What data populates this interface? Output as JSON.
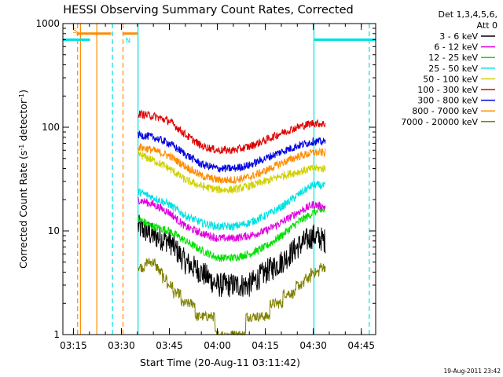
{
  "chart_data": {
    "type": "line",
    "title": "HESSI Observing Summary Count Rates, Corrected",
    "xlabel": "Start Time (20-Aug-11 03:11:42)",
    "ylabel": "Corrected Count Rate (s⁻¹ detector⁻¹)",
    "x_range_minutes": [
      191.7,
      289.5
    ],
    "ylim": [
      1,
      1000
    ],
    "yscale": "log",
    "x_ticks": [
      {
        "t": 195,
        "label": "03:15"
      },
      {
        "t": 210,
        "label": "03:30"
      },
      {
        "t": 225,
        "label": "03:45"
      },
      {
        "t": 240,
        "label": "04:00"
      },
      {
        "t": 255,
        "label": "04:15"
      },
      {
        "t": 270,
        "label": "04:30"
      },
      {
        "t": 285,
        "label": "04:45"
      }
    ],
    "y_ticks": [
      {
        "v": 1,
        "label": "1"
      },
      {
        "v": 10,
        "label": "10"
      },
      {
        "v": 100,
        "label": "100"
      },
      {
        "v": 1000,
        "label": "1000"
      }
    ],
    "legend_header": [
      "Det 1,3,4,5,6,",
      "Att 0"
    ],
    "data_start": 215.2,
    "data_end": 273.8,
    "series": [
      {
        "name": "3 - 6 keV",
        "color": "#000000",
        "points": [
          [
            215.2,
            11
          ],
          [
            220,
            9
          ],
          [
            225,
            8
          ],
          [
            230,
            5
          ],
          [
            235,
            4
          ],
          [
            240,
            3
          ],
          [
            245,
            3
          ],
          [
            250,
            3
          ],
          [
            255,
            4
          ],
          [
            260,
            5
          ],
          [
            265,
            7
          ],
          [
            270,
            9
          ],
          [
            273.8,
            8
          ]
        ]
      },
      {
        "name": "6 - 12 keV",
        "color": "#e000e0",
        "points": [
          [
            215.2,
            20
          ],
          [
            220,
            18
          ],
          [
            225,
            15
          ],
          [
            230,
            11
          ],
          [
            235,
            9.5
          ],
          [
            240,
            8.5
          ],
          [
            245,
            8.5
          ],
          [
            250,
            9
          ],
          [
            255,
            10
          ],
          [
            260,
            12
          ],
          [
            265,
            15
          ],
          [
            270,
            18
          ],
          [
            273.8,
            17
          ]
        ]
      },
      {
        "name": "12 - 25 keV",
        "color": "#00e000",
        "points": [
          [
            215.2,
            13
          ],
          [
            220,
            11
          ],
          [
            225,
            10
          ],
          [
            230,
            8
          ],
          [
            235,
            6.5
          ],
          [
            240,
            5.5
          ],
          [
            245,
            5.5
          ],
          [
            250,
            6
          ],
          [
            255,
            7
          ],
          [
            260,
            9
          ],
          [
            265,
            12
          ],
          [
            270,
            15
          ],
          [
            273.8,
            16
          ]
        ]
      },
      {
        "name": "25 - 50 keV",
        "color": "#00e0e0",
        "points": [
          [
            215.2,
            24
          ],
          [
            220,
            21
          ],
          [
            225,
            18
          ],
          [
            230,
            14
          ],
          [
            235,
            12
          ],
          [
            240,
            11
          ],
          [
            245,
            11
          ],
          [
            250,
            12
          ],
          [
            255,
            14
          ],
          [
            260,
            17
          ],
          [
            265,
            22
          ],
          [
            270,
            28
          ],
          [
            273.8,
            27
          ]
        ]
      },
      {
        "name": "50 - 100 keV",
        "color": "#d0d000",
        "points": [
          [
            215.2,
            55
          ],
          [
            220,
            48
          ],
          [
            225,
            40
          ],
          [
            230,
            31
          ],
          [
            235,
            27
          ],
          [
            240,
            25
          ],
          [
            245,
            25
          ],
          [
            250,
            27
          ],
          [
            255,
            30
          ],
          [
            260,
            34
          ],
          [
            265,
            37
          ],
          [
            270,
            40
          ],
          [
            273.8,
            40
          ]
        ]
      },
      {
        "name": "100 - 300 keV",
        "color": "#e00000",
        "points": [
          [
            215.2,
            135
          ],
          [
            220,
            128
          ],
          [
            225,
            115
          ],
          [
            230,
            85
          ],
          [
            235,
            66
          ],
          [
            240,
            60
          ],
          [
            245,
            60
          ],
          [
            250,
            65
          ],
          [
            255,
            75
          ],
          [
            260,
            88
          ],
          [
            265,
            100
          ],
          [
            270,
            110
          ],
          [
            273.8,
            107
          ]
        ]
      },
      {
        "name": "300 - 800 keV",
        "color": "#0000e0",
        "points": [
          [
            215.2,
            85
          ],
          [
            220,
            80
          ],
          [
            225,
            70
          ],
          [
            230,
            55
          ],
          [
            235,
            44
          ],
          [
            240,
            40
          ],
          [
            245,
            40
          ],
          [
            250,
            43
          ],
          [
            255,
            50
          ],
          [
            260,
            58
          ],
          [
            265,
            66
          ],
          [
            270,
            73
          ],
          [
            273.8,
            72
          ]
        ]
      },
      {
        "name": "800 - 7000 keV",
        "color": "#ff8c00",
        "points": [
          [
            215.2,
            65
          ],
          [
            220,
            60
          ],
          [
            225,
            53
          ],
          [
            230,
            42
          ],
          [
            235,
            34
          ],
          [
            240,
            31
          ],
          [
            245,
            31
          ],
          [
            250,
            33
          ],
          [
            255,
            38
          ],
          [
            260,
            45
          ],
          [
            265,
            52
          ],
          [
            270,
            57
          ],
          [
            273.8,
            57
          ]
        ]
      },
      {
        "name": "7000 - 20000 keV",
        "color": "#808000",
        "points": [
          [
            215.2,
            4.5
          ],
          [
            220,
            5
          ],
          [
            225,
            3
          ],
          [
            230,
            2
          ],
          [
            235,
            1.6
          ],
          [
            240,
            1.2
          ],
          [
            245,
            1.1
          ],
          [
            250,
            1.3
          ],
          [
            255,
            1.6
          ],
          [
            260,
            2.2
          ],
          [
            265,
            2.8
          ],
          [
            270,
            4
          ],
          [
            273.8,
            4.5
          ]
        ]
      }
    ],
    "markers": [
      {
        "label": "S",
        "color": "#ff8c00",
        "t": 194,
        "level": 870,
        "bar": [
          194,
          197
        ]
      },
      {
        "label": "N",
        "color": "#00e0e0",
        "t": 210.5,
        "level": 700,
        "bar": [
          193,
          200.2
        ]
      }
    ],
    "cyan_bars": [
      [
        191.7,
        200.2
      ],
      [
        270.2,
        289.5
      ]
    ],
    "orange_bars": [
      [
        196,
        206.8
      ],
      [
        210.5,
        215
      ]
    ],
    "vlines": [
      {
        "t": 196.3,
        "color": "#ff8c00",
        "dashed": true
      },
      {
        "t": 197.2,
        "color": "#ff8c00",
        "dashed": false
      },
      {
        "t": 202.3,
        "color": "#ff8c00",
        "dashed": false
      },
      {
        "t": 207.2,
        "color": "#00e0e0",
        "dashed": true
      },
      {
        "t": 210.5,
        "color": "#ff8c00",
        "dashed": true
      },
      {
        "t": 215.2,
        "color": "#00e0e0",
        "dashed": false
      },
      {
        "t": 270.2,
        "color": "#00e0e0",
        "dashed": false
      },
      {
        "t": 287.5,
        "color": "#00e0e0",
        "dashed": true
      }
    ],
    "timestamp": "19-Aug-2011 23:42"
  }
}
